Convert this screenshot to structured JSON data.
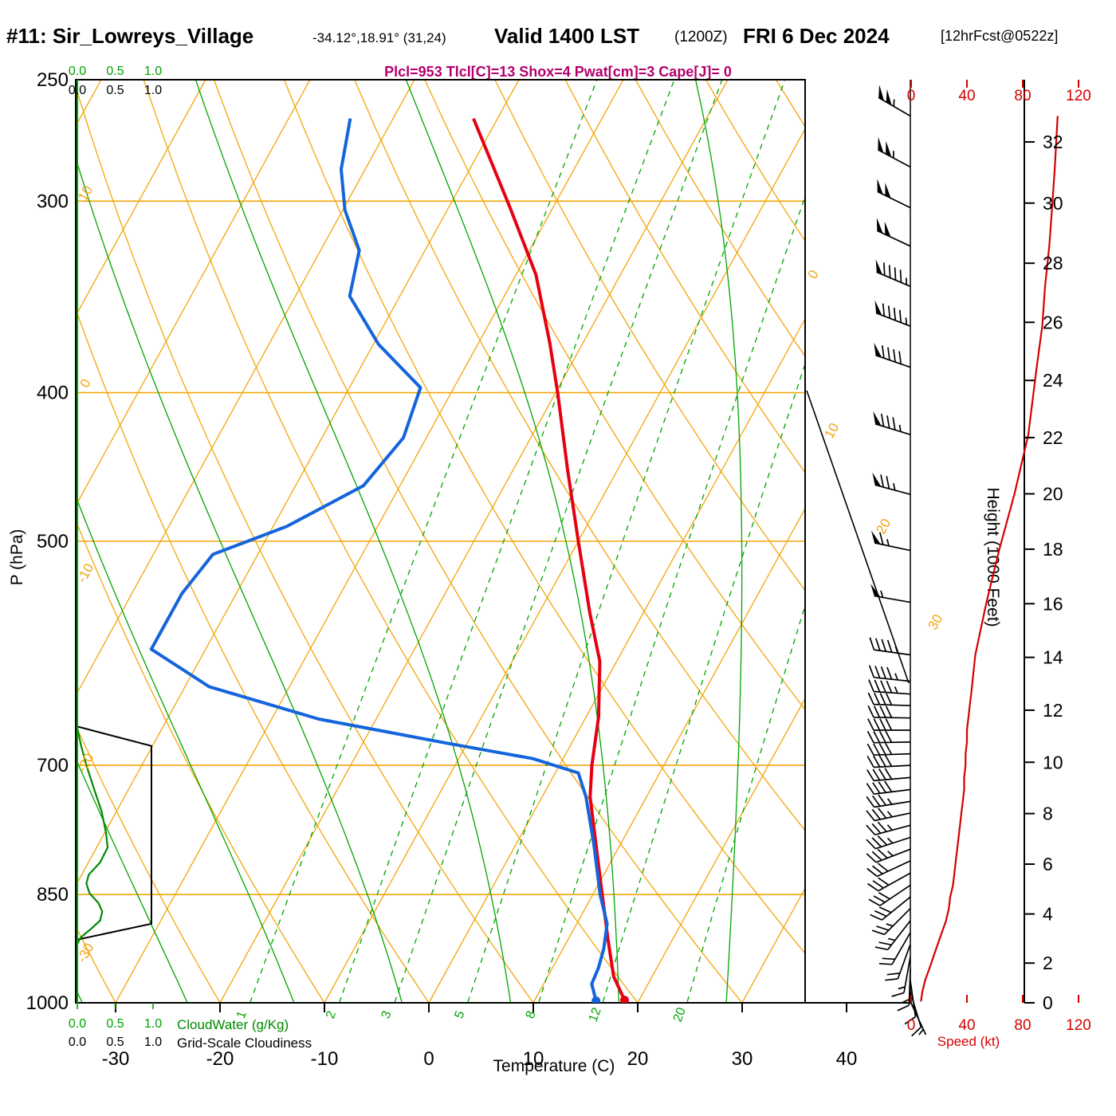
{
  "header": {
    "station": "#11: Sir_Lowreys_Village",
    "coords": "-34.12°,18.91° (31,24)",
    "valid": "Valid 1400 LST",
    "valid_z": "(1200Z)",
    "date": "FRI 6 Dec 2024",
    "fcst": "[12hrFcst@0522z]",
    "params": "Plcl=953 Tlcl[C]=13 Shox=4 Pwat[cm]=3 Cape[J]= 0"
  },
  "axes": {
    "pressure_label": "P (hPa)",
    "temp_label": "Temperature (C)",
    "height_label": "Height (1000 Feet)",
    "speed_label": "Speed (kt)",
    "cloudwater_label": "CloudWater (g/Kg)",
    "cloudiness_label": "Grid-Scale Cloudiness",
    "cloud_scale_ticks": [
      "0.0",
      "0.5",
      "1.0"
    ]
  },
  "colors": {
    "lattice_orange": "#f2a60a",
    "green": "#00a400",
    "cloud_green": "#008a00",
    "temp_red": "#e60012",
    "dewpoint_blue": "#1464dc",
    "wind_red": "#d40000",
    "magenta": "#b4006e",
    "black": "#000000"
  },
  "chart_data": {
    "type": "skewt_sounding",
    "pressure_axis_hPa": {
      "min": 250,
      "max": 1000,
      "ticks": [
        250,
        300,
        400,
        500,
        700,
        850,
        1000
      ]
    },
    "temp_axis_C": {
      "ticks": [
        -30,
        -20,
        -10,
        0,
        10,
        20,
        30,
        40
      ]
    },
    "height_axis_kft": {
      "ticks": [
        0,
        2,
        4,
        6,
        8,
        10,
        12,
        14,
        16,
        18,
        20,
        22,
        24,
        26,
        28,
        30,
        32
      ]
    },
    "speed_axis_kt": {
      "ticks": [
        0,
        40,
        80,
        120
      ]
    },
    "isotherms_C": {
      "start": -100,
      "end": 40,
      "step": 10
    },
    "dry_adiabats_thetaC": {
      "start": -30,
      "end": 130,
      "step": 10
    },
    "moist_adiabats_startC": {
      "start": -60,
      "end": 40,
      "step": 10
    },
    "mixing_ratio_gkg": [
      1,
      2,
      3,
      5,
      8,
      12,
      20
    ],
    "isotherm_labels_left_C": [
      10,
      0,
      -10,
      -20,
      -30
    ],
    "isotherm_labels_right_C": [
      0,
      10,
      20,
      30
    ],
    "lcl_pressure_hPa": 953,
    "lcl_temp_C": 13,
    "showalter_index": 4,
    "precip_water_cm": 3,
    "cape_J": 0,
    "temperature_profile_pC": [
      [
        265,
        -42.3
      ],
      [
        303,
        -34.1
      ],
      [
        335,
        -28.1
      ],
      [
        371,
        -23.2
      ],
      [
        400,
        -19.8
      ],
      [
        449,
        -14.8
      ],
      [
        500,
        -10.0
      ],
      [
        557,
        -5.1
      ],
      [
        599,
        -1.6
      ],
      [
        651,
        1.2
      ],
      [
        700,
        3.1
      ],
      [
        734,
        4.6
      ],
      [
        789,
        7.7
      ],
      [
        850,
        10.9
      ],
      [
        911,
        13.9
      ],
      [
        961,
        16.3
      ],
      [
        996,
        18.6
      ]
    ],
    "dewpoint_profile_pC": [
      [
        265,
        -54.1
      ],
      [
        286,
        -52.3
      ],
      [
        304,
        -49.8
      ],
      [
        323,
        -46.3
      ],
      [
        346,
        -44.8
      ],
      [
        372,
        -39.5
      ],
      [
        397,
        -33.2
      ],
      [
        428,
        -32.2
      ],
      [
        460,
        -33.5
      ],
      [
        489,
        -38.7
      ],
      [
        510,
        -44.3
      ],
      [
        541,
        -45.2
      ],
      [
        588,
        -45.2
      ],
      [
        622,
        -37.7
      ],
      [
        653,
        -25.5
      ],
      [
        677,
        -12.0
      ],
      [
        693,
        -2.9
      ],
      [
        708,
        2.2
      ],
      [
        734,
        4.2
      ],
      [
        789,
        7.5
      ],
      [
        850,
        10.7
      ],
      [
        888,
        12.9
      ],
      [
        922,
        13.9
      ],
      [
        949,
        14.4
      ],
      [
        972,
        14.6
      ],
      [
        997,
        15.9
      ]
    ],
    "surface_temp_C": 18.6,
    "surface_dewpoint_C": 15.9,
    "wind_profile_p_kt_dir": [
      [
        264,
        105,
        300
      ],
      [
        285,
        103,
        298
      ],
      [
        303,
        101,
        296
      ],
      [
        321,
        99,
        295
      ],
      [
        341,
        96,
        293
      ],
      [
        362,
        94,
        291
      ],
      [
        385,
        90,
        289
      ],
      [
        426,
        84,
        287
      ],
      [
        466,
        74,
        285
      ],
      [
        507,
        63,
        282
      ],
      [
        548,
        54,
        280
      ],
      [
        593,
        46,
        278
      ],
      [
        617,
        44,
        276
      ],
      [
        629,
        43,
        274
      ],
      [
        640,
        42,
        272
      ],
      [
        652,
        41,
        271
      ],
      [
        664,
        40,
        270
      ],
      [
        676,
        40,
        269
      ],
      [
        688,
        39,
        268
      ],
      [
        700,
        39,
        267
      ],
      [
        713,
        38,
        265
      ],
      [
        726,
        38,
        263
      ],
      [
        739,
        37,
        261
      ],
      [
        752,
        36,
        258
      ],
      [
        766,
        35,
        255
      ],
      [
        780,
        34,
        252
      ],
      [
        794,
        33,
        249
      ],
      [
        808,
        32,
        245
      ],
      [
        823,
        31,
        241
      ],
      [
        838,
        30,
        236
      ],
      [
        853,
        28,
        231
      ],
      [
        868,
        27,
        225
      ],
      [
        884,
        25,
        218
      ],
      [
        900,
        22,
        210
      ],
      [
        916,
        19,
        200
      ],
      [
        933,
        16,
        190
      ],
      [
        950,
        13,
        182
      ],
      [
        967,
        10,
        172
      ],
      [
        984,
        8,
        163
      ],
      [
        998,
        7,
        155
      ]
    ],
    "cloud_water_profile_p_gkg": [
      [
        662,
        0
      ],
      [
        680,
        0.05
      ],
      [
        700,
        0.12
      ],
      [
        725,
        0.22
      ],
      [
        750,
        0.32
      ],
      [
        775,
        0.38
      ],
      [
        792,
        0.4
      ],
      [
        810,
        0.3
      ],
      [
        825,
        0.15
      ],
      [
        836,
        0.12
      ],
      [
        848,
        0.16
      ],
      [
        861,
        0.28
      ],
      [
        872,
        0.33
      ],
      [
        884,
        0.3
      ],
      [
        895,
        0.18
      ],
      [
        906,
        0.05
      ],
      [
        915,
        0
      ]
    ],
    "cloudiness_profile_p_frac": [
      [
        660,
        0
      ],
      [
        680,
        1
      ],
      [
        888,
        1
      ],
      [
        910,
        0
      ]
    ]
  }
}
